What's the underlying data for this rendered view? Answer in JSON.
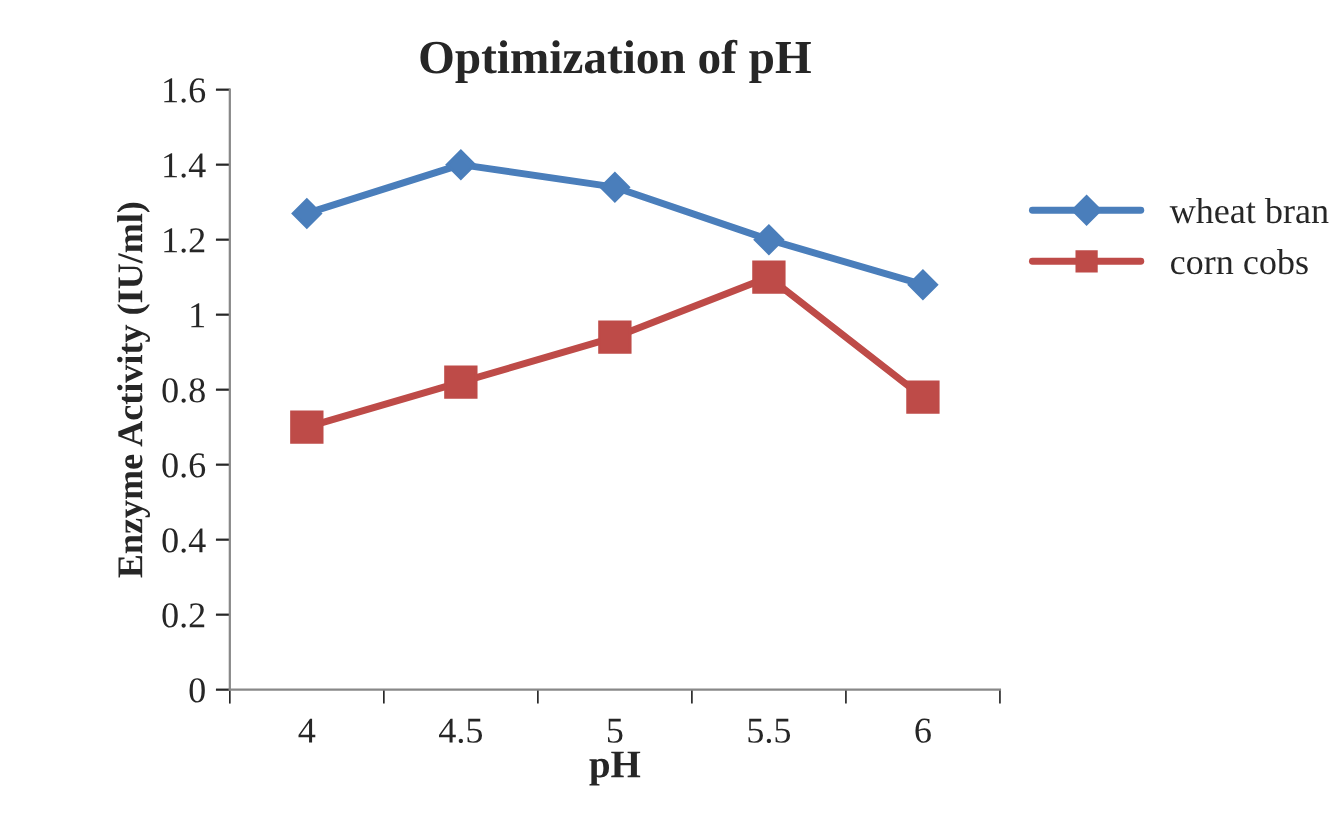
{
  "chart_data": {
    "type": "line",
    "title": "Optimization of pH",
    "xlabel": "pH",
    "ylabel": "Enzyme Activity (IU/ml)",
    "categories": [
      "4",
      "4.5",
      "5",
      "5.5",
      "6"
    ],
    "series": [
      {
        "name": "wheat bran",
        "color": "#4a7ebb",
        "marker": "diamond",
        "values": [
          1.27,
          1.4,
          1.34,
          1.2,
          1.08
        ]
      },
      {
        "name": "corn cobs",
        "color": "#be4b48",
        "marker": "square",
        "values": [
          0.7,
          0.82,
          0.94,
          1.1,
          0.78
        ]
      }
    ],
    "ylim": [
      0,
      1.6
    ],
    "yticks": [
      0,
      0.2,
      0.4,
      0.6,
      0.8,
      1,
      1.2,
      1.4,
      1.6
    ],
    "grid": false,
    "legend": "right",
    "line_style": "solid"
  }
}
